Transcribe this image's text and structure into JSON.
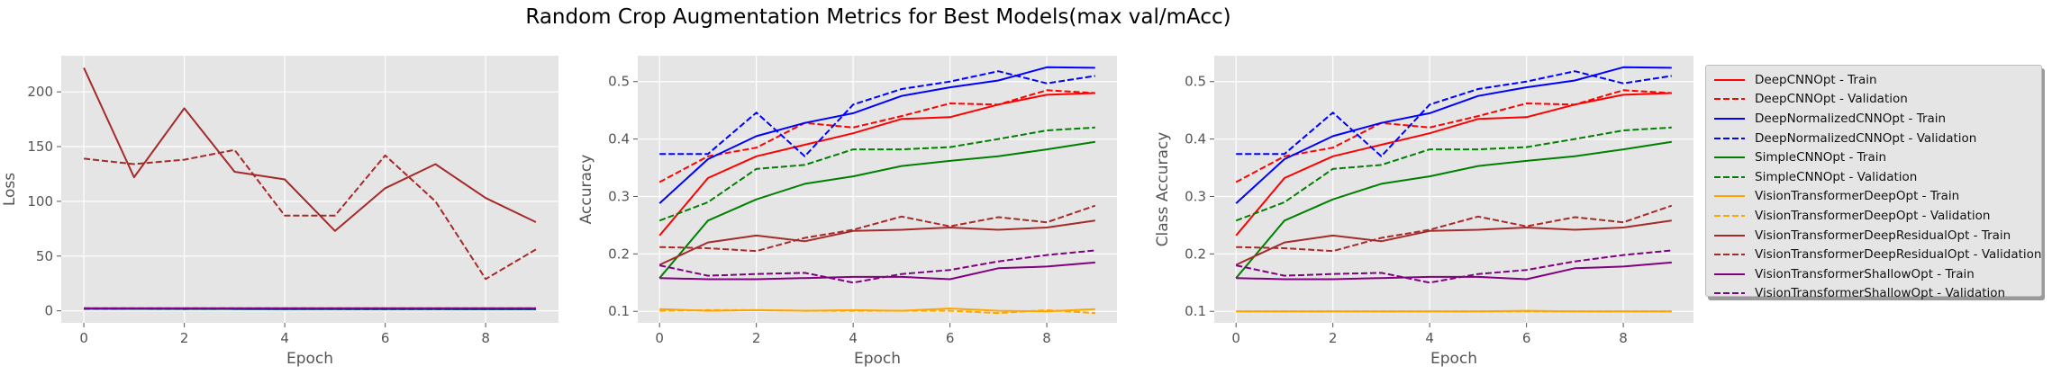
{
  "figure": {
    "suptitle": "Random Crop Augmentation Metrics for Best Models(max val/mAcc)"
  },
  "series_meta": [
    {
      "name": "DeepCNNOpt - Train",
      "color": "#ff0000",
      "dashed": false
    },
    {
      "name": "DeepCNNOpt - Validation",
      "color": "#ff0000",
      "dashed": true
    },
    {
      "name": "DeepNormalizedCNNOpt - Train",
      "color": "#0000ff",
      "dashed": false
    },
    {
      "name": "DeepNormalizedCNNOpt - Validation",
      "color": "#0000ff",
      "dashed": true
    },
    {
      "name": "SimpleCNNOpt - Train",
      "color": "#008000",
      "dashed": false
    },
    {
      "name": "SimpleCNNOpt - Validation",
      "color": "#008000",
      "dashed": true
    },
    {
      "name": "VisionTransformerDeepOpt - Train",
      "color": "#ffa500",
      "dashed": false
    },
    {
      "name": "VisionTransformerDeepOpt - Validation",
      "color": "#ffa500",
      "dashed": true
    },
    {
      "name": "VisionTransformerDeepResidualOpt - Train",
      "color": "#a52a2a",
      "dashed": false
    },
    {
      "name": "VisionTransformerDeepResidualOpt - Validation",
      "color": "#a52a2a",
      "dashed": true
    },
    {
      "name": "VisionTransformerShallowOpt - Train",
      "color": "#800080",
      "dashed": false
    },
    {
      "name": "VisionTransformerShallowOpt - Validation",
      "color": "#800080",
      "dashed": true
    }
  ],
  "chart_data": [
    {
      "type": "line",
      "title": "",
      "xlabel": "Epoch",
      "ylabel": "Loss",
      "x": [
        0,
        1,
        2,
        3,
        4,
        5,
        6,
        7,
        8,
        9
      ],
      "xlim": [
        -0.45,
        9.45
      ],
      "ylim": [
        -11,
        233
      ],
      "xticks": [
        0,
        2,
        4,
        6,
        8
      ],
      "yticks": [
        0,
        50,
        100,
        150,
        200
      ],
      "grid": true,
      "series": [
        {
          "values": [
            2.1,
            2.0,
            1.9,
            1.9,
            1.9,
            1.8,
            1.8,
            1.8,
            1.8,
            1.8
          ]
        },
        {
          "values": [
            1.9,
            1.9,
            1.9,
            1.9,
            1.8,
            1.8,
            1.8,
            1.8,
            1.8,
            1.8
          ]
        },
        {
          "values": [
            2.0,
            1.8,
            1.7,
            1.6,
            1.6,
            1.5,
            1.5,
            1.5,
            1.4,
            1.4
          ]
        },
        {
          "values": [
            1.8,
            1.7,
            1.6,
            1.7,
            1.5,
            1.5,
            1.4,
            1.4,
            1.4,
            1.4
          ]
        },
        {
          "values": [
            2.2,
            2.1,
            2.0,
            1.9,
            1.9,
            1.8,
            1.8,
            1.8,
            1.7,
            1.7
          ]
        },
        {
          "values": [
            2.1,
            2.0,
            1.9,
            1.8,
            1.8,
            1.7,
            1.7,
            1.7,
            1.7,
            1.7
          ]
        },
        {
          "values": [
            2.3,
            2.3,
            2.3,
            2.3,
            2.3,
            2.3,
            2.3,
            2.3,
            2.3,
            2.3
          ]
        },
        {
          "values": [
            2.3,
            2.3,
            2.3,
            2.3,
            2.3,
            2.3,
            2.3,
            2.3,
            2.3,
            2.3
          ]
        },
        {
          "values": [
            222,
            122,
            185,
            127,
            120,
            73,
            112,
            134,
            103,
            81
          ]
        },
        {
          "values": [
            139,
            134,
            138,
            147,
            87,
            87,
            142,
            100,
            29,
            56
          ]
        },
        {
          "values": [
            2.2,
            2.2,
            2.2,
            2.2,
            2.2,
            2.2,
            2.2,
            2.2,
            2.2,
            2.2
          ]
        },
        {
          "values": [
            2.2,
            2.2,
            2.2,
            2.2,
            2.2,
            2.2,
            2.2,
            2.2,
            2.2,
            2.2
          ]
        }
      ]
    },
    {
      "type": "line",
      "title": "",
      "xlabel": "Epoch",
      "ylabel": "Accuracy",
      "x": [
        0,
        1,
        2,
        3,
        4,
        5,
        6,
        7,
        8,
        9
      ],
      "xlim": [
        -0.45,
        9.45
      ],
      "ylim": [
        0.08,
        0.545
      ],
      "xticks": [
        0,
        2,
        4,
        6,
        8
      ],
      "yticks": [
        0.1,
        0.2,
        0.3,
        0.4,
        0.5
      ],
      "grid": true,
      "series": [
        {
          "values": [
            0.232,
            0.332,
            0.37,
            0.39,
            0.41,
            0.435,
            0.438,
            0.46,
            0.477,
            0.48
          ]
        },
        {
          "values": [
            0.325,
            0.37,
            0.385,
            0.428,
            0.42,
            0.44,
            0.462,
            0.46,
            0.485,
            0.48
          ]
        },
        {
          "values": [
            0.288,
            0.365,
            0.405,
            0.428,
            0.445,
            0.475,
            0.49,
            0.502,
            0.525,
            0.524
          ]
        },
        {
          "values": [
            0.374,
            0.374,
            0.446,
            0.37,
            0.46,
            0.487,
            0.5,
            0.518,
            0.497,
            0.51
          ]
        },
        {
          "values": [
            0.158,
            0.258,
            0.295,
            0.322,
            0.335,
            0.353,
            0.362,
            0.37,
            0.382,
            0.395
          ]
        },
        {
          "values": [
            0.258,
            0.29,
            0.348,
            0.355,
            0.382,
            0.382,
            0.386,
            0.4,
            0.415,
            0.42
          ]
        },
        {
          "values": [
            0.104,
            0.101,
            0.102,
            0.101,
            0.102,
            0.101,
            0.105,
            0.101,
            0.1,
            0.104
          ]
        },
        {
          "values": [
            0.101,
            0.102,
            0.102,
            0.101,
            0.101,
            0.101,
            0.101,
            0.097,
            0.102,
            0.097
          ]
        },
        {
          "values": [
            0.181,
            0.22,
            0.232,
            0.222,
            0.24,
            0.242,
            0.246,
            0.242,
            0.246,
            0.258
          ]
        },
        {
          "values": [
            0.212,
            0.21,
            0.205,
            0.228,
            0.242,
            0.265,
            0.248,
            0.264,
            0.255,
            0.284
          ]
        },
        {
          "values": [
            0.158,
            0.156,
            0.156,
            0.158,
            0.16,
            0.16,
            0.156,
            0.175,
            0.178,
            0.185
          ]
        },
        {
          "values": [
            0.18,
            0.162,
            0.165,
            0.167,
            0.15,
            0.165,
            0.172,
            0.187,
            0.198,
            0.206
          ]
        }
      ]
    },
    {
      "type": "line",
      "title": "",
      "xlabel": "Epoch",
      "ylabel": "Class Accuracy",
      "x": [
        0,
        1,
        2,
        3,
        4,
        5,
        6,
        7,
        8,
        9
      ],
      "xlim": [
        -0.45,
        9.45
      ],
      "ylim": [
        0.08,
        0.545
      ],
      "xticks": [
        0,
        2,
        4,
        6,
        8
      ],
      "yticks": [
        0.1,
        0.2,
        0.3,
        0.4,
        0.5
      ],
      "grid": true,
      "series": [
        {
          "values": [
            0.232,
            0.332,
            0.37,
            0.39,
            0.41,
            0.435,
            0.438,
            0.46,
            0.477,
            0.48
          ]
        },
        {
          "values": [
            0.325,
            0.37,
            0.385,
            0.428,
            0.42,
            0.44,
            0.462,
            0.46,
            0.485,
            0.48
          ]
        },
        {
          "values": [
            0.288,
            0.365,
            0.405,
            0.428,
            0.445,
            0.475,
            0.49,
            0.502,
            0.525,
            0.524
          ]
        },
        {
          "values": [
            0.374,
            0.374,
            0.446,
            0.37,
            0.46,
            0.487,
            0.5,
            0.518,
            0.497,
            0.51
          ]
        },
        {
          "values": [
            0.158,
            0.258,
            0.295,
            0.322,
            0.335,
            0.353,
            0.362,
            0.37,
            0.382,
            0.395
          ]
        },
        {
          "values": [
            0.258,
            0.29,
            0.348,
            0.355,
            0.382,
            0.382,
            0.386,
            0.4,
            0.415,
            0.42
          ]
        },
        {
          "values": [
            0.1,
            0.1,
            0.1,
            0.1,
            0.1,
            0.1,
            0.101,
            0.1,
            0.1,
            0.1
          ]
        },
        {
          "values": [
            0.1,
            0.1,
            0.1,
            0.1,
            0.1,
            0.1,
            0.1,
            0.1,
            0.1,
            0.1
          ]
        },
        {
          "values": [
            0.181,
            0.22,
            0.232,
            0.222,
            0.24,
            0.242,
            0.246,
            0.242,
            0.246,
            0.258
          ]
        },
        {
          "values": [
            0.212,
            0.21,
            0.205,
            0.228,
            0.242,
            0.265,
            0.248,
            0.264,
            0.255,
            0.284
          ]
        },
        {
          "values": [
            0.158,
            0.156,
            0.156,
            0.158,
            0.16,
            0.16,
            0.156,
            0.175,
            0.178,
            0.185
          ]
        },
        {
          "values": [
            0.18,
            0.162,
            0.165,
            0.167,
            0.15,
            0.165,
            0.172,
            0.187,
            0.198,
            0.206
          ]
        }
      ]
    }
  ]
}
